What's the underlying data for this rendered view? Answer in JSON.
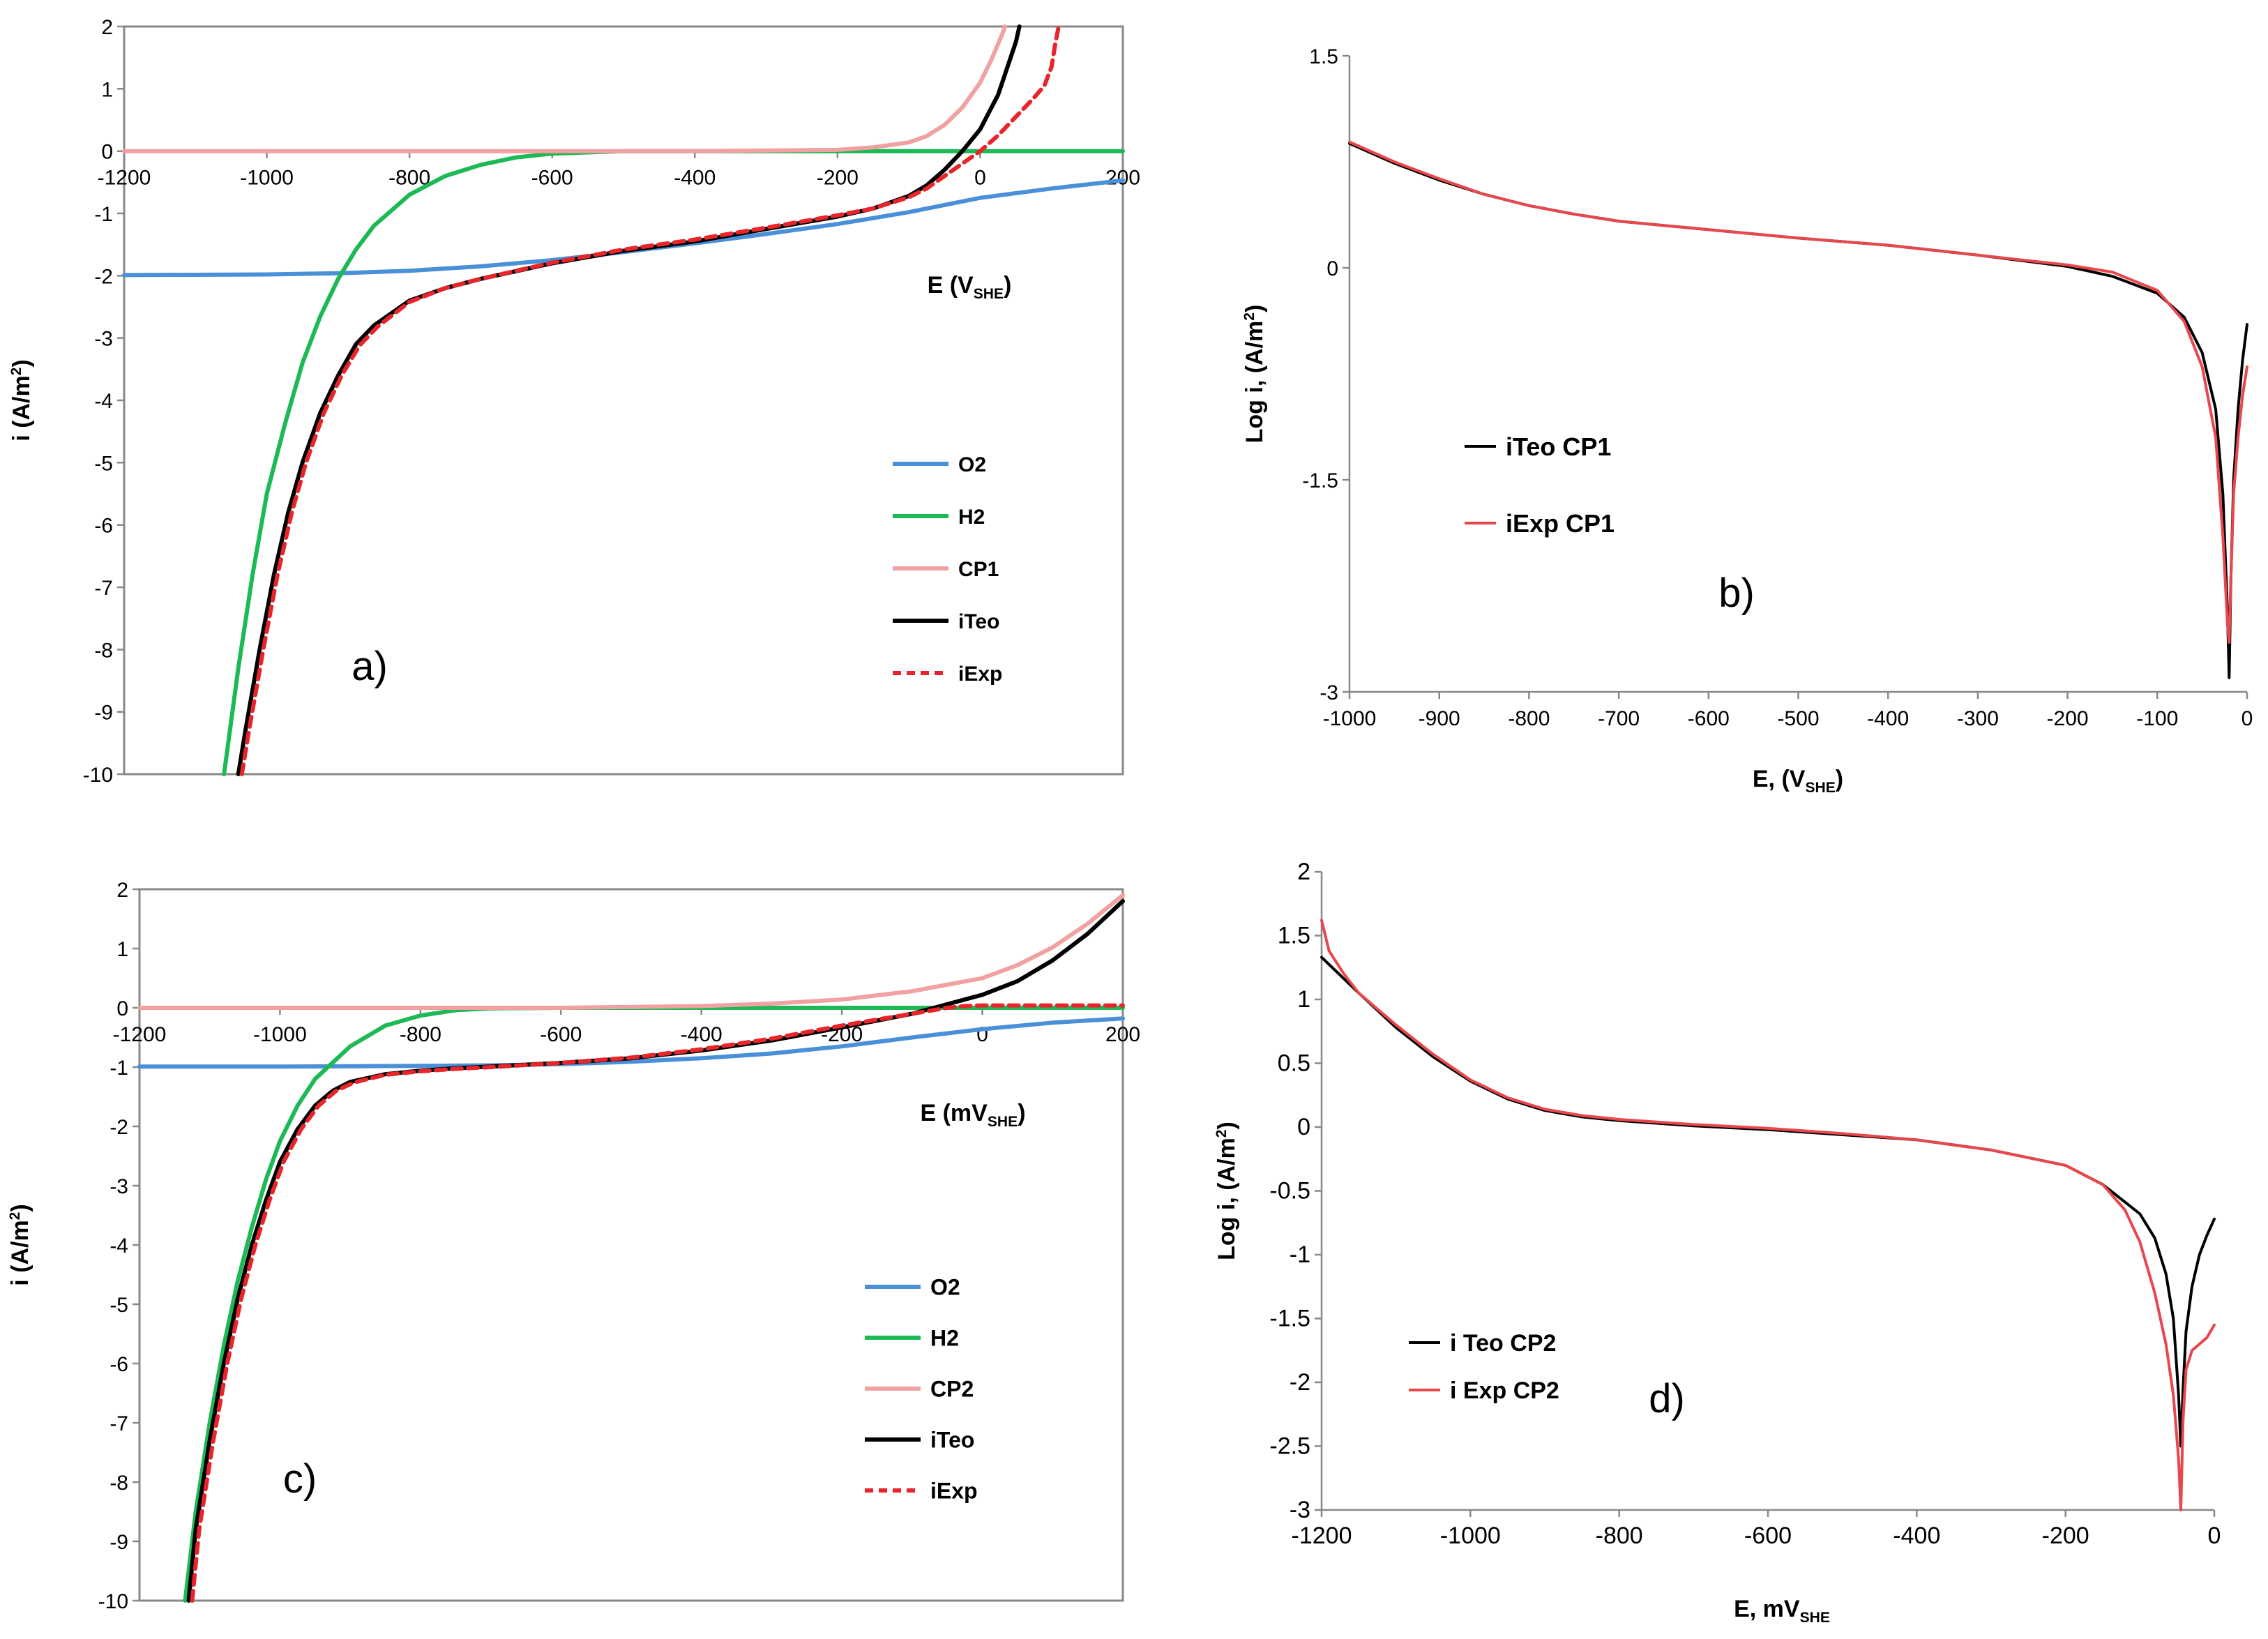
{
  "chart_data": [
    {
      "panel": "a",
      "panel_label": "a)",
      "type": "line",
      "xlabel": "E (V",
      "xlabel_sub": "SHE",
      "xlabel_suffix": ")",
      "ylabel": "i (A/m",
      "ylabel_sup": "2",
      "ylabel_suffix": ")",
      "xlim": [
        -1200,
        200
      ],
      "ylim": [
        -10,
        2
      ],
      "xticks": [
        "-1200",
        "-1000",
        "-800",
        "-600",
        "-400",
        "-200",
        "0",
        "200"
      ],
      "yticks": [
        "2",
        "1",
        "0",
        "-1",
        "-2",
        "-3",
        "-4",
        "-5",
        "-6",
        "-7",
        "-8",
        "-9",
        "-10"
      ],
      "legend": [
        "O2",
        "H2",
        "CP1",
        "iTeo",
        "iExp"
      ],
      "series": [
        {
          "name": "O2",
          "color": "#4a90d9",
          "dash": false,
          "x": [
            -1200,
            -1000,
            -900,
            -800,
            -700,
            -600,
            -500,
            -400,
            -300,
            -200,
            -100,
            0,
            100,
            200
          ],
          "y": [
            -1.99,
            -1.98,
            -1.96,
            -1.92,
            -1.85,
            -1.75,
            -1.62,
            -1.48,
            -1.33,
            -1.17,
            -0.98,
            -0.75,
            -0.6,
            -0.47
          ]
        },
        {
          "name": "H2",
          "color": "#1db954",
          "dash": false,
          "x": [
            -1060,
            -1040,
            -1020,
            -1000,
            -975,
            -950,
            -925,
            -900,
            -875,
            -850,
            -800,
            -750,
            -700,
            -650,
            -600,
            -550,
            -500,
            -400,
            -200,
            0,
            200
          ],
          "y": [
            -10,
            -8.3,
            -6.8,
            -5.5,
            -4.4,
            -3.4,
            -2.65,
            -2.05,
            -1.58,
            -1.2,
            -0.7,
            -0.4,
            -0.22,
            -0.1,
            -0.04,
            -0.02,
            0,
            0,
            0,
            0,
            0
          ]
        },
        {
          "name": "CP1",
          "color": "#f1a1a1",
          "dash": false,
          "x": [
            -1200,
            -400,
            -200,
            -150,
            -100,
            -75,
            -50,
            -25,
            0,
            15,
            30,
            35
          ],
          "y": [
            0,
            0,
            0.02,
            0.06,
            0.14,
            0.24,
            0.42,
            0.7,
            1.1,
            1.45,
            1.85,
            2
          ]
        },
        {
          "name": "iTeo",
          "color": "#000000",
          "dash": false,
          "x": [
            -1040,
            -1030,
            -1010,
            -990,
            -970,
            -950,
            -925,
            -900,
            -875,
            -850,
            -800,
            -750,
            -700,
            -600,
            -500,
            -400,
            -300,
            -200,
            -150,
            -100,
            -75,
            -50,
            -25,
            0,
            25,
            50,
            55
          ],
          "y": [
            -10,
            -9.3,
            -8,
            -6.8,
            -5.8,
            -5,
            -4.2,
            -3.6,
            -3.1,
            -2.8,
            -2.4,
            -2.2,
            -2.05,
            -1.8,
            -1.6,
            -1.45,
            -1.25,
            -1.05,
            -0.92,
            -0.72,
            -0.55,
            -0.3,
            0,
            0.35,
            0.9,
            1.75,
            2
          ]
        },
        {
          "name": "iExp",
          "color": "#e8252a",
          "dash": true,
          "x": [
            -1035,
            -1025,
            -1005,
            -985,
            -965,
            -945,
            -920,
            -895,
            -870,
            -845,
            -800,
            -750,
            -700,
            -600,
            -500,
            -400,
            -300,
            -200,
            -150,
            -100,
            -75,
            -50,
            -25,
            0,
            25,
            50,
            75,
            90,
            100,
            105,
            110
          ],
          "y": [
            -10,
            -9.3,
            -8,
            -6.8,
            -5.8,
            -5,
            -4.2,
            -3.6,
            -3.12,
            -2.82,
            -2.42,
            -2.2,
            -2.05,
            -1.79,
            -1.58,
            -1.42,
            -1.23,
            -1.03,
            -0.92,
            -0.74,
            -0.6,
            -0.4,
            -0.2,
            0,
            0.25,
            0.55,
            0.85,
            1.05,
            1.35,
            1.7,
            2
          ]
        }
      ]
    },
    {
      "panel": "b",
      "panel_label": "b)",
      "type": "line",
      "xlabel": "E, (V",
      "xlabel_sub": "SHE",
      "xlabel_suffix": ")",
      "ylabel": "Log i, (A/m",
      "ylabel_sup": "2",
      "ylabel_suffix": ")",
      "xlim": [
        -1000,
        0
      ],
      "ylim": [
        -3,
        1.5
      ],
      "xticks": [
        "-1000",
        "-900",
        "-800",
        "-700",
        "-600",
        "-500",
        "-400",
        "-300",
        "-200",
        "-100",
        "0"
      ],
      "yticks": [
        "1.5",
        "0",
        "-1.5",
        "-3"
      ],
      "legend": [
        "iTeo CP1",
        "iExp CP1"
      ],
      "series": [
        {
          "name": "iTeo CP1",
          "color": "#000000",
          "dash": false,
          "x": [
            -1000,
            -950,
            -900,
            -850,
            -800,
            -750,
            -700,
            -650,
            -600,
            -500,
            -400,
            -300,
            -200,
            -150,
            -100,
            -70,
            -50,
            -35,
            -27,
            -22,
            -20,
            -18,
            -15,
            -10,
            -5,
            0
          ],
          "y": [
            0.88,
            0.74,
            0.62,
            0.52,
            0.44,
            0.38,
            0.33,
            0.3,
            0.27,
            0.21,
            0.16,
            0.09,
            0.01,
            -0.06,
            -0.18,
            -0.35,
            -0.6,
            -1.0,
            -1.6,
            -2.4,
            -2.9,
            -2.2,
            -1.5,
            -1.0,
            -0.65,
            -0.4
          ]
        },
        {
          "name": "iExp CP1",
          "color": "#e8474c",
          "dash": false,
          "x": [
            -1000,
            -950,
            -900,
            -850,
            -800,
            -750,
            -700,
            -650,
            -600,
            -500,
            -400,
            -300,
            -200,
            -150,
            -100,
            -70,
            -50,
            -35,
            -27,
            -22,
            -20,
            -18,
            -15,
            -10,
            -5,
            0
          ],
          "y": [
            0.89,
            0.75,
            0.63,
            0.52,
            0.44,
            0.38,
            0.33,
            0.3,
            0.27,
            0.21,
            0.16,
            0.09,
            0.02,
            -0.03,
            -0.16,
            -0.38,
            -0.7,
            -1.2,
            -1.9,
            -2.5,
            -2.65,
            -2.2,
            -1.6,
            -1.2,
            -0.9,
            -0.7
          ]
        }
      ]
    },
    {
      "panel": "c",
      "panel_label": "c)",
      "type": "line",
      "xlabel": "E (mV",
      "xlabel_sub": "SHE",
      "xlabel_suffix": ")",
      "ylabel": "i (A/m",
      "ylabel_sup": "2",
      "ylabel_suffix": ")",
      "xlim": [
        -1200,
        200
      ],
      "ylim": [
        -10,
        2
      ],
      "xticks": [
        "-1200",
        "-1000",
        "-800",
        "-600",
        "-400",
        "-200",
        "0",
        "200"
      ],
      "yticks": [
        "2",
        "1",
        "0",
        "-1",
        "-2",
        "-3",
        "-4",
        "-5",
        "-6",
        "-7",
        "-8",
        "-9",
        "-10"
      ],
      "legend": [
        "O2",
        "H2",
        "CP2",
        "iTeo",
        "iExp"
      ],
      "series": [
        {
          "name": "O2",
          "color": "#4a90d9",
          "dash": false,
          "x": [
            -1200,
            -1000,
            -800,
            -700,
            -600,
            -500,
            -400,
            -300,
            -200,
            -100,
            0,
            100,
            200
          ],
          "y": [
            -0.99,
            -0.99,
            -0.98,
            -0.97,
            -0.95,
            -0.91,
            -0.85,
            -0.77,
            -0.65,
            -0.5,
            -0.36,
            -0.25,
            -0.18
          ]
        },
        {
          "name": "H2",
          "color": "#1db954",
          "dash": false,
          "x": [
            -1135,
            -1120,
            -1100,
            -1080,
            -1060,
            -1040,
            -1020,
            -1000,
            -975,
            -950,
            -900,
            -850,
            -800,
            -750,
            -700,
            -600,
            -400,
            0,
            200
          ],
          "y": [
            -10,
            -8.5,
            -7,
            -5.7,
            -4.6,
            -3.7,
            -2.9,
            -2.25,
            -1.65,
            -1.2,
            -0.65,
            -0.3,
            -0.13,
            -0.04,
            -0.01,
            0,
            0,
            0,
            0
          ]
        },
        {
          "name": "CP2",
          "color": "#f1a1a1",
          "dash": false,
          "x": [
            -1200,
            -600,
            -400,
            -300,
            -200,
            -100,
            0,
            50,
            100,
            150,
            200
          ],
          "y": [
            0,
            0,
            0.03,
            0.07,
            0.14,
            0.28,
            0.5,
            0.72,
            1.02,
            1.42,
            1.9
          ]
        },
        {
          "name": "iTeo",
          "color": "#000000",
          "dash": false,
          "x": [
            -1130,
            -1120,
            -1100,
            -1080,
            -1060,
            -1040,
            -1020,
            -1000,
            -975,
            -950,
            -925,
            -900,
            -850,
            -800,
            -750,
            -700,
            -600,
            -500,
            -400,
            -300,
            -200,
            -100,
            0,
            50,
            100,
            150,
            200
          ],
          "y": [
            -10,
            -8.8,
            -7.3,
            -6,
            -4.9,
            -4,
            -3.25,
            -2.6,
            -2.05,
            -1.65,
            -1.4,
            -1.25,
            -1.12,
            -1.06,
            -1.02,
            -0.99,
            -0.93,
            -0.85,
            -0.72,
            -0.55,
            -0.33,
            -0.1,
            0.22,
            0.45,
            0.8,
            1.25,
            1.8
          ]
        },
        {
          "name": "iExp",
          "color": "#e8252a",
          "dash": true,
          "x": [
            -1125,
            -1115,
            -1095,
            -1075,
            -1055,
            -1035,
            -1015,
            -995,
            -970,
            -945,
            -920,
            -895,
            -850,
            -800,
            -750,
            -700,
            -600,
            -500,
            -400,
            -300,
            -200,
            -100,
            -50,
            -25,
            0,
            100,
            200
          ],
          "y": [
            -10,
            -8.8,
            -7.3,
            -6,
            -4.9,
            -4,
            -3.25,
            -2.6,
            -2.05,
            -1.65,
            -1.4,
            -1.26,
            -1.13,
            -1.07,
            -1.03,
            -1.0,
            -0.93,
            -0.84,
            -0.7,
            -0.52,
            -0.3,
            -0.1,
            0,
            0.03,
            0.04,
            0.04,
            0.04
          ]
        }
      ]
    },
    {
      "panel": "d",
      "panel_label": "d)",
      "type": "line",
      "xlabel": "E, mV",
      "xlabel_sub": "SHE",
      "xlabel_suffix": "",
      "ylabel": "Log i, (A/m",
      "ylabel_sup": "2",
      "ylabel_suffix": ")",
      "xlim": [
        -1200,
        0
      ],
      "ylim": [
        -3,
        2
      ],
      "xticks": [
        "-1200",
        "-1000",
        "-800",
        "-600",
        "-400",
        "-200",
        "0"
      ],
      "yticks": [
        "2",
        "1.5",
        "1",
        "0.5",
        "0",
        "-0.5",
        "-1",
        "-1.5",
        "-2",
        "-2.5",
        "-3"
      ],
      "legend": [
        "i Teo CP2",
        "i Exp CP2"
      ],
      "series": [
        {
          "name": "i Teo CP2",
          "color": "#000000",
          "dash": false,
          "x": [
            -1200,
            -1150,
            -1100,
            -1050,
            -1000,
            -950,
            -900,
            -850,
            -800,
            -700,
            -600,
            -500,
            -400,
            -300,
            -200,
            -150,
            -100,
            -80,
            -65,
            -55,
            -48,
            -45,
            -42,
            -38,
            -30,
            -20,
            -10,
            0
          ],
          "y": [
            1.33,
            1.05,
            0.78,
            0.55,
            0.36,
            0.22,
            0.13,
            0.08,
            0.05,
            0.01,
            -0.02,
            -0.06,
            -0.1,
            -0.18,
            -0.3,
            -0.45,
            -0.68,
            -0.87,
            -1.15,
            -1.5,
            -2.1,
            -2.5,
            -2.05,
            -1.6,
            -1.25,
            -1.0,
            -0.85,
            -0.72
          ]
        },
        {
          "name": "i Exp CP2",
          "color": "#e8474c",
          "dash": false,
          "x": [
            -1200,
            -1190,
            -1170,
            -1150,
            -1100,
            -1050,
            -1000,
            -950,
            -900,
            -850,
            -800,
            -700,
            -600,
            -500,
            -400,
            -300,
            -200,
            -150,
            -120,
            -100,
            -80,
            -65,
            -55,
            -48,
            -45,
            -42,
            -38,
            -30,
            -20,
            -10,
            0
          ],
          "y": [
            1.62,
            1.38,
            1.2,
            1.05,
            0.8,
            0.57,
            0.37,
            0.23,
            0.14,
            0.09,
            0.06,
            0.02,
            -0.01,
            -0.05,
            -0.1,
            -0.18,
            -0.3,
            -0.45,
            -0.65,
            -0.9,
            -1.3,
            -1.7,
            -2.1,
            -2.6,
            -3.0,
            -2.3,
            -1.9,
            -1.75,
            -1.7,
            -1.65,
            -1.55
          ]
        }
      ]
    }
  ]
}
